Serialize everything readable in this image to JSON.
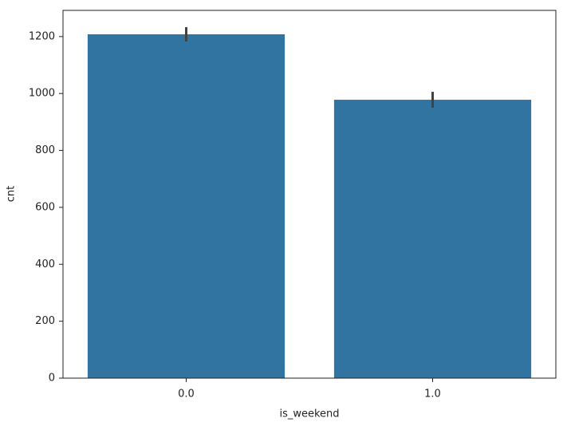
{
  "chart_data": {
    "type": "bar",
    "x_label": "is_weekend",
    "y_label": "cnt",
    "categories": [
      "0.0",
      "1.0"
    ],
    "values": [
      1208,
      978
    ],
    "ci_low": [
      1183,
      950
    ],
    "ci_high": [
      1233,
      1006
    ],
    "color": "#3274a1",
    "error_color": "#424242",
    "ylim": [
      0,
      1292
    ],
    "yticks": [
      0,
      200,
      400,
      600,
      800,
      1000,
      1200
    ],
    "grid": false
  }
}
